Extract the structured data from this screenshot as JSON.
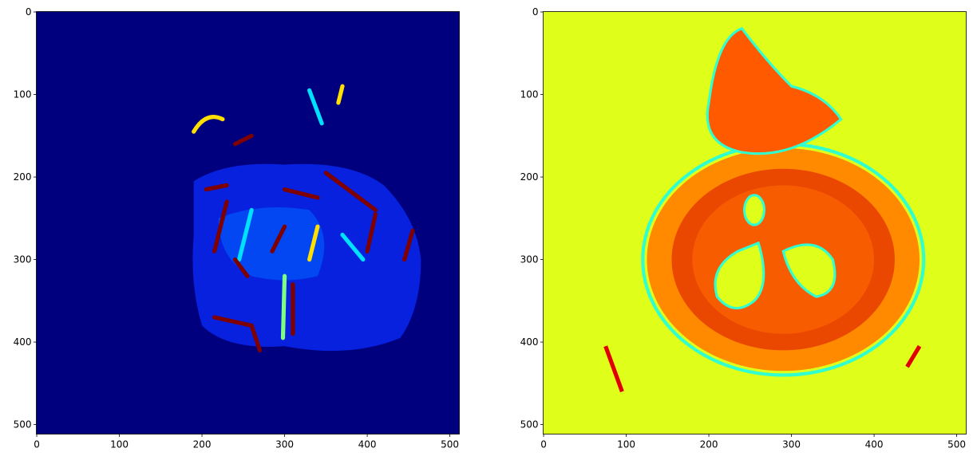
{
  "chart_data": [
    {
      "type": "heatmap",
      "colormap": "jet",
      "xlim": [
        -0.5,
        511.5
      ],
      "ylim": [
        511.5,
        -0.5
      ],
      "xticks": [
        0,
        100,
        200,
        300,
        400,
        500
      ],
      "yticks": [
        0,
        100,
        200,
        300,
        400,
        500
      ]
    },
    {
      "type": "heatmap",
      "colormap": "jet",
      "xlim": [
        -0.5,
        511.5
      ],
      "ylim": [
        511.5,
        -0.5
      ],
      "xticks": [
        0,
        100,
        200,
        300,
        400,
        500
      ],
      "yticks": [
        0,
        100,
        200,
        300,
        400,
        500
      ]
    }
  ]
}
